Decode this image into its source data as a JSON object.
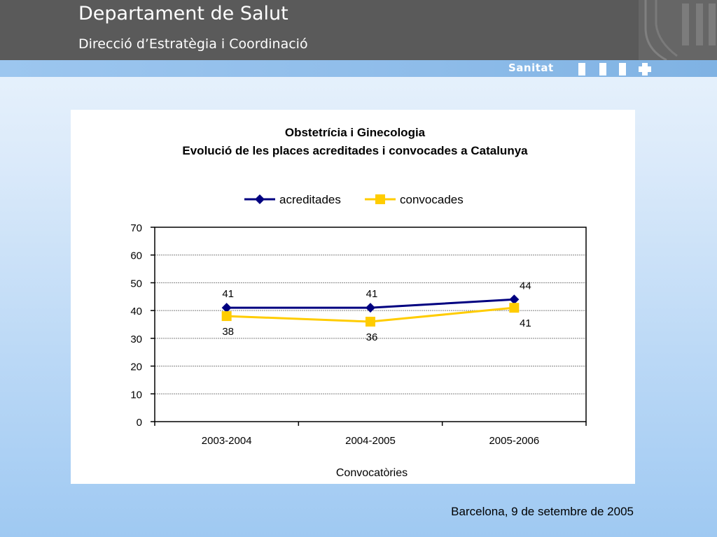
{
  "header": {
    "title": "Departament de Salut",
    "subtitle": "Direcció d’Estratègia i Coordinació",
    "brand": "Sanitat"
  },
  "chart_data": {
    "type": "line",
    "title": "Obstetrícia i Ginecologia",
    "subtitle": "Evolució de les places acreditades i convocades a Catalunya",
    "xlabel": "Convocatòries",
    "ylabel": "",
    "categories": [
      "2003-2004",
      "2004-2005",
      "2005-2006"
    ],
    "ylim": [
      0,
      70
    ],
    "yticks": [
      0,
      10,
      20,
      30,
      40,
      50,
      60,
      70
    ],
    "grid": true,
    "legend": "top",
    "series": [
      {
        "name": "acreditades",
        "values": [
          41,
          41,
          44
        ],
        "color": "#000080",
        "marker": "diamond",
        "label_position": "above"
      },
      {
        "name": "convocades",
        "values": [
          38,
          36,
          41
        ],
        "color": "#ffcc00",
        "marker": "square",
        "label_position": "below"
      }
    ]
  },
  "footer": {
    "text": "Barcelona, 9 de setembre de 2005"
  }
}
